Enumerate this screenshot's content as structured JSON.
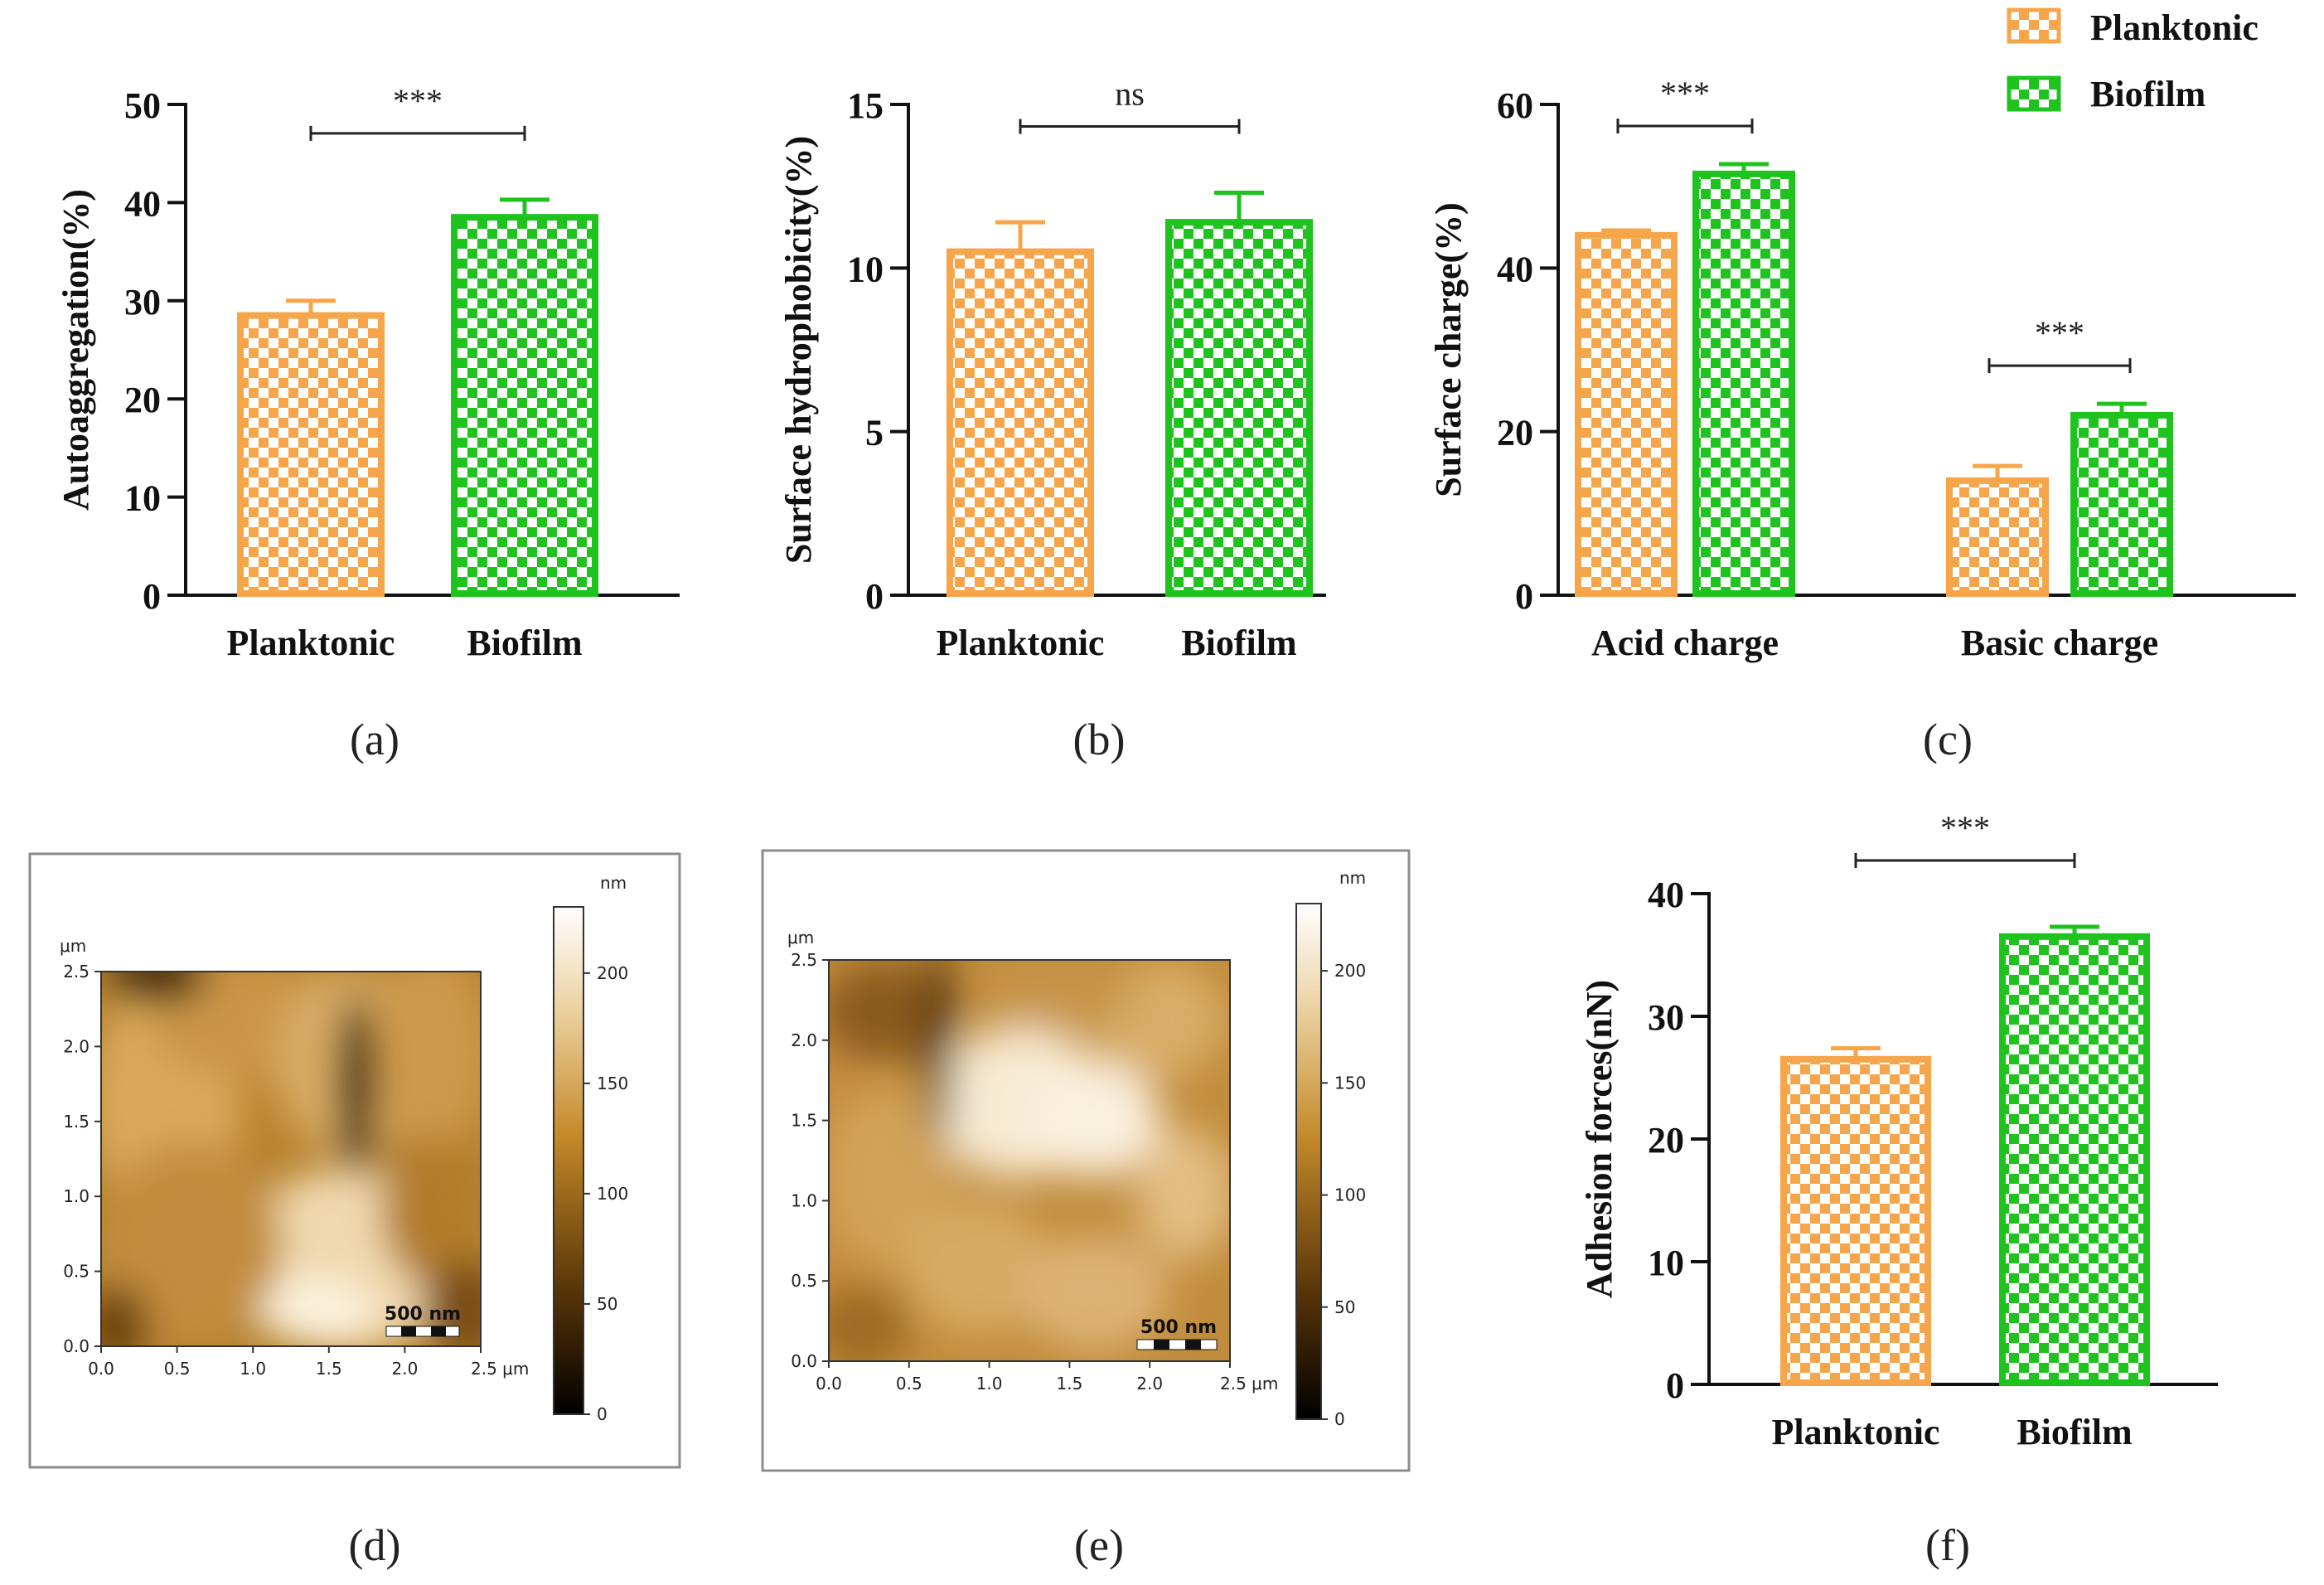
{
  "legend": {
    "items": [
      {
        "label": "Planktonic",
        "color": "#F7A54A",
        "pattern": "checker"
      },
      {
        "label": "Biofilm",
        "color": "#1EC31E",
        "pattern": "checker"
      }
    ]
  },
  "chart_data": [
    {
      "panel": "(a)",
      "type": "bar",
      "ylabel": "Autoaggregation(%)",
      "ylim": [
        0,
        50
      ],
      "yticks": [
        0,
        10,
        20,
        30,
        40,
        50
      ],
      "categories": [
        "Planktonic",
        "Biofilm"
      ],
      "series": [
        {
          "values": [
            28.5,
            38.5
          ],
          "errors": [
            1.5,
            1.8
          ]
        }
      ],
      "significance": [
        {
          "between": [
            0,
            1
          ],
          "label": "***"
        }
      ]
    },
    {
      "panel": "(b)",
      "type": "bar",
      "ylabel": "Surface hydrophobicity(%)",
      "ylim": [
        0,
        15
      ],
      "yticks": [
        0,
        5,
        10,
        15
      ],
      "categories": [
        "Planktonic",
        "Biofilm"
      ],
      "series": [
        {
          "values": [
            10.5,
            11.4
          ],
          "errors": [
            0.9,
            0.9
          ]
        }
      ],
      "significance": [
        {
          "between": [
            0,
            1
          ],
          "label": "ns"
        }
      ]
    },
    {
      "panel": "(c)",
      "type": "bar",
      "ylabel": "Surface charge(%)",
      "ylim": [
        0,
        60
      ],
      "yticks": [
        0,
        20,
        40,
        60
      ],
      "categories": [
        "Acid charge",
        "Basic charge"
      ],
      "series": [
        {
          "name": "Planktonic",
          "values": [
            44.0,
            14.0
          ],
          "errors": [
            0.6,
            1.8
          ]
        },
        {
          "name": "Biofilm",
          "values": [
            51.5,
            22.0
          ],
          "errors": [
            1.2,
            1.4
          ]
        }
      ],
      "significance": [
        {
          "category": 0,
          "label": "***"
        },
        {
          "category": 1,
          "label": "***"
        }
      ]
    },
    {
      "panel": "(f)",
      "type": "bar",
      "ylabel": "Adhesion forces(nN)",
      "ylim": [
        0,
        40
      ],
      "yticks": [
        0,
        10,
        20,
        30,
        40
      ],
      "categories": [
        "Planktonic",
        "Biofilm"
      ],
      "series": [
        {
          "values": [
            26.5,
            36.5
          ],
          "errors": [
            0.9,
            0.8
          ]
        }
      ],
      "significance": [
        {
          "between": [
            0,
            1
          ],
          "label": "***"
        }
      ]
    }
  ],
  "afm": [
    {
      "panel": "(d)",
      "axis_unit": "μm",
      "x_ticks": [
        "0.0",
        "0.5",
        "1.0",
        "1.5",
        "2.0",
        "2.5 μm"
      ],
      "y_ticks": [
        "0.0",
        "0.5",
        "1.0",
        "1.5",
        "2.0",
        "2.5"
      ],
      "scale_bar": "500 nm",
      "colorbar_unit": "nm",
      "colorbar_ticks": [
        "0",
        "50",
        "100",
        "150",
        "200"
      ]
    },
    {
      "panel": "(e)",
      "axis_unit": "μm",
      "x_ticks": [
        "0.0",
        "0.5",
        "1.0",
        "1.5",
        "2.0",
        "2.5 μm"
      ],
      "y_ticks": [
        "0.0",
        "0.5",
        "1.0",
        "1.5",
        "2.0",
        "2.5"
      ],
      "scale_bar": "500 nm",
      "colorbar_unit": "nm",
      "colorbar_ticks": [
        "0",
        "50",
        "100",
        "150",
        "200"
      ]
    }
  ],
  "panel_labels": [
    "(a)",
    "(b)",
    "(c)",
    "(d)",
    "(e)",
    "(f)"
  ]
}
